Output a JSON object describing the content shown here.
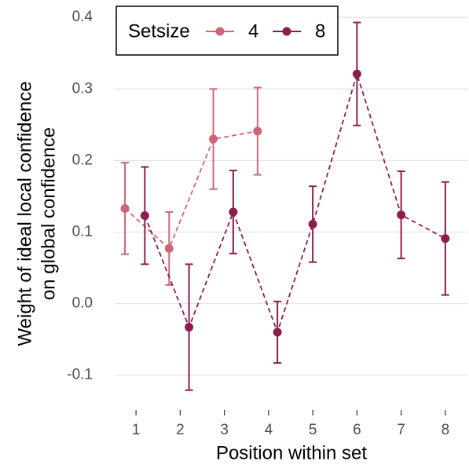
{
  "chart_data": {
    "type": "line",
    "x_label": "Position within set",
    "y_label": [
      "Weight of ideal local confidence",
      "on global confidence"
    ],
    "legend_title": "Setsize",
    "legend": "top-left",
    "grid": true,
    "xlim": [
      0.5,
      8.5
    ],
    "xticks": [
      1,
      2,
      3,
      4,
      5,
      6,
      7,
      8
    ],
    "ylim": [
      -0.14,
      0.42
    ],
    "yticks": [
      {
        "value": 0.4,
        "label": "0.4"
      },
      {
        "value": 0.3,
        "label": "0.3"
      },
      {
        "value": 0.2,
        "label": "0.2"
      },
      {
        "value": 0.1,
        "label": "0.1"
      },
      {
        "value": 0,
        "label": "0.0"
      },
      {
        "value": -0.1,
        "label": "-0.1"
      }
    ],
    "series": [
      {
        "name": "4",
        "color": "#cc6677",
        "x": [
          0.75,
          1.75,
          2.75,
          3.75
        ],
        "values": [
          0.133,
          0.077,
          0.23,
          0.241
        ],
        "errors": [
          0.064,
          0.051,
          0.07,
          0.061
        ]
      },
      {
        "name": "8",
        "color": "#8b1e4f",
        "x": [
          1.2,
          2.2,
          3.2,
          4.2,
          5,
          6,
          7,
          8
        ],
        "values": [
          0.123,
          -0.033,
          0.128,
          -0.04,
          0.111,
          0.321,
          0.124,
          0.091
        ],
        "errors": [
          0.068,
          0.088,
          0.058,
          0.043,
          0.053,
          0.072,
          0.061,
          0.079
        ]
      }
    ]
  }
}
